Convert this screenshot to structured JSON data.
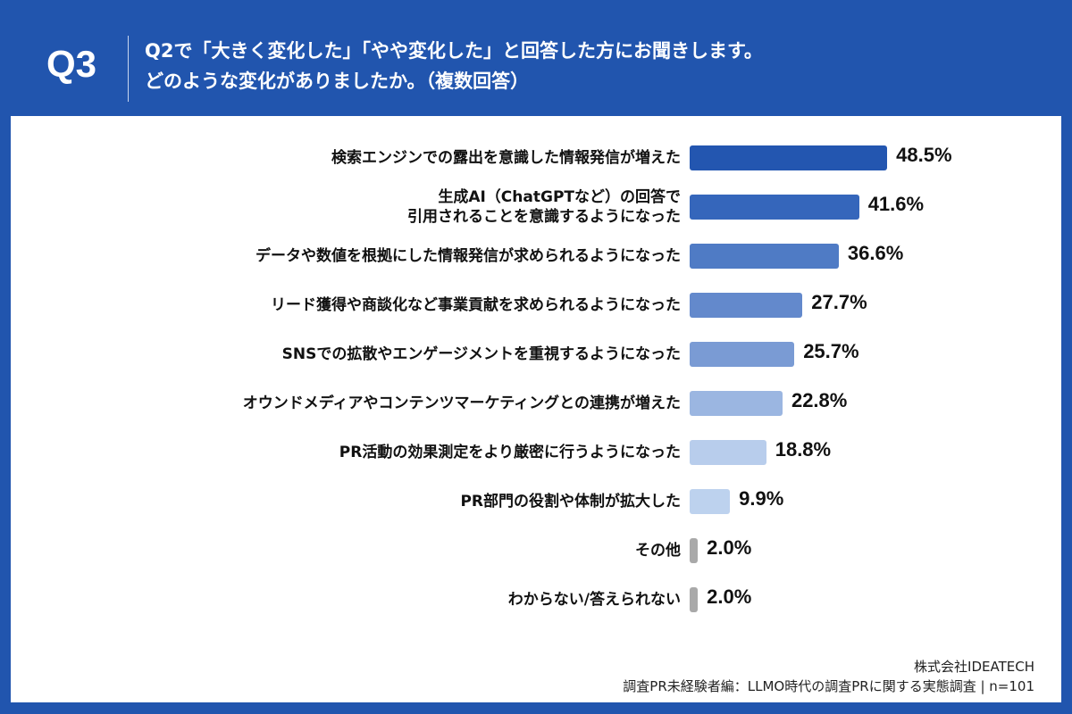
{
  "header": {
    "q_number": "Q3",
    "title_line1": "Q2で「大きく変化した」「やや変化した」と回答した方にお聞きします。",
    "title_line2": "どのような変化がありましたか。（複数回答）"
  },
  "footer": {
    "company": "株式会社IDEATECH",
    "source": "調査PR未経験者編：LLMO時代の調査PRに関する実態調査 | n=101"
  },
  "chart_data": {
    "type": "bar",
    "orientation": "horizontal",
    "categories": [
      "検索エンジンでの露出を意識した情報発信が増えた",
      "生成AI（ChatGPTなど）の回答で\n引用されることを意識するようになった",
      "データや数値を根拠にした情報発信が求められるようになった",
      "リード獲得や商談化など事業貢献を求められるようになった",
      "SNSでの拡散やエンゲージメントを重視するようになった",
      "オウンドメディアやコンテンツマーケティングとの連携が増えた",
      "PR活動の効果測定をより厳密に行うようになった",
      "PR部門の役割や体制が拡大した",
      "その他",
      "わからない/答えられない"
    ],
    "values": [
      48.5,
      41.6,
      36.6,
      27.7,
      25.7,
      22.8,
      18.8,
      9.9,
      2.0,
      2.0
    ],
    "value_labels": [
      "48.5%",
      "41.6%",
      "36.6%",
      "27.7%",
      "25.7%",
      "22.8%",
      "18.8%",
      "9.9%",
      "2.0%",
      "2.0%"
    ],
    "colors": [
      "#2356b0",
      "#3566bb",
      "#4f7bc5",
      "#6389cc",
      "#7a9bd4",
      "#9bb6e1",
      "#b8cdec",
      "#bdd2ee",
      "#a9a9a9",
      "#a9a9a9"
    ],
    "unit": "%",
    "grid": false,
    "legend": "none"
  }
}
